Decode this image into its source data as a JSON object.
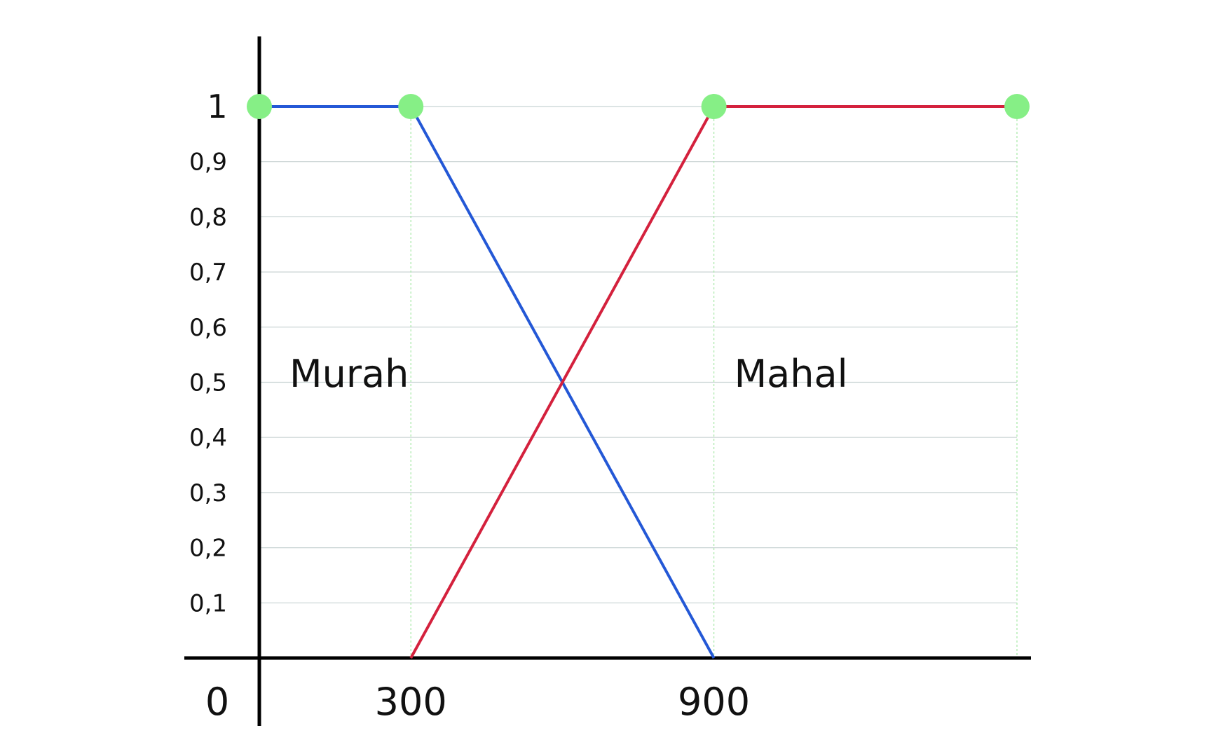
{
  "chart_data": {
    "type": "line",
    "title": "",
    "xlabel": "",
    "ylabel": "",
    "xlim": [
      0,
      1500
    ],
    "ylim": [
      0,
      1.1
    ],
    "grid": true,
    "y_ticks": [
      {
        "value": 0.1,
        "label": "0,1"
      },
      {
        "value": 0.2,
        "label": "0,2"
      },
      {
        "value": 0.3,
        "label": "0,3"
      },
      {
        "value": 0.4,
        "label": "0,4"
      },
      {
        "value": 0.5,
        "label": "0,5"
      },
      {
        "value": 0.6,
        "label": "0,6"
      },
      {
        "value": 0.7,
        "label": "0,7"
      },
      {
        "value": 0.8,
        "label": "0,8"
      },
      {
        "value": 0.9,
        "label": "0,9"
      },
      {
        "value": 1.0,
        "label": "1"
      }
    ],
    "x_ticks": [
      {
        "value": 0,
        "label": "0"
      },
      {
        "value": 300,
        "label": "300"
      },
      {
        "value": 900,
        "label": "900"
      }
    ],
    "series": [
      {
        "name": "Murah",
        "color": "#2458d6",
        "points": [
          [
            0,
            1
          ],
          [
            300,
            1
          ],
          [
            900,
            0
          ]
        ]
      },
      {
        "name": "Mahal",
        "color": "#d4213d",
        "points": [
          [
            300,
            0
          ],
          [
            900,
            1
          ],
          [
            1500,
            1
          ]
        ]
      }
    ],
    "markers": {
      "color": "#86ef86",
      "points": [
        [
          0,
          1
        ],
        [
          300,
          1
        ],
        [
          900,
          1
        ],
        [
          1500,
          1
        ]
      ]
    },
    "guide_x": [
      300,
      900,
      1500
    ],
    "series_labels": [
      {
        "text": "Murah",
        "x": 300,
        "y": 0.52
      },
      {
        "text": "Mahal",
        "x": 900,
        "y": 0.52
      }
    ]
  }
}
